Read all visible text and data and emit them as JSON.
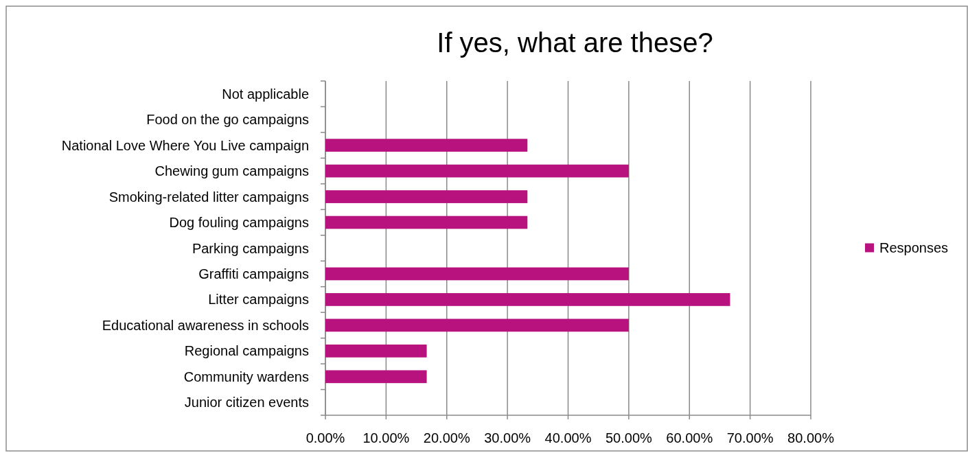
{
  "chart_data": {
    "type": "bar",
    "orientation": "horizontal",
    "title": "If yes, what are these?",
    "categories": [
      "Not applicable",
      "Food on the go campaigns",
      "National Love Where You Live campaign",
      "Chewing gum campaigns",
      "Smoking-related litter campaigns",
      "Dog fouling campaigns",
      "Parking campaigns",
      "Graffiti campaigns",
      "Litter campaigns",
      "Educational awareness in schools",
      "Regional campaigns",
      "Community wardens",
      "Junior citizen events"
    ],
    "series": [
      {
        "name": "Responses",
        "color": "#b8127f",
        "values": [
          0,
          0,
          33.3,
          50,
          33.3,
          33.3,
          0,
          50,
          66.7,
          50,
          16.7,
          16.7,
          0
        ]
      }
    ],
    "xlim": [
      0,
      80
    ],
    "xticks": [
      {
        "value": 0,
        "label": "0.00%"
      },
      {
        "value": 10,
        "label": "10.00%"
      },
      {
        "value": 20,
        "label": "20.00%"
      },
      {
        "value": 30,
        "label": "30.00%"
      },
      {
        "value": 40,
        "label": "40.00%"
      },
      {
        "value": 50,
        "label": "50.00%"
      },
      {
        "value": 60,
        "label": "60.00%"
      },
      {
        "value": 70,
        "label": "70.00%"
      },
      {
        "value": 80,
        "label": "80.00%"
      }
    ],
    "grid": "x",
    "legend": "right"
  }
}
